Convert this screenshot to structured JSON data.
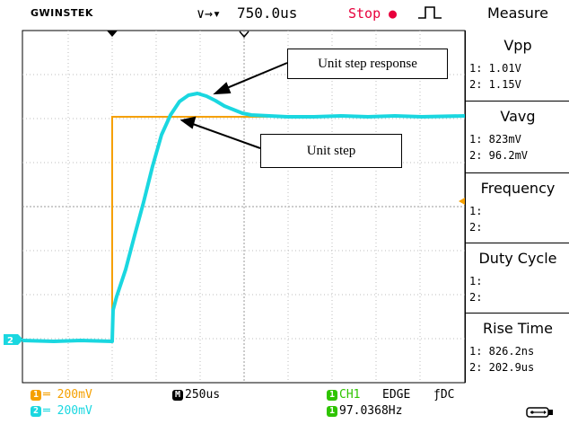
{
  "top_bar": {
    "brand": "GWINSTEK",
    "horizontal_icon": "∨→▾",
    "horizontal_position": "750.0us",
    "run_state": "Stop",
    "run_state_dot": "●",
    "trigger_icon": "rising-edge-icon"
  },
  "measure": {
    "title": "Measure",
    "items": [
      {
        "name": "Vpp",
        "ch1": "1: 1.01V",
        "ch2": "2: 1.15V"
      },
      {
        "name": "Vavg",
        "ch1": "1: 823mV",
        "ch2": "2: 96.2mV"
      },
      {
        "name": "Frequency",
        "ch1": "1:",
        "ch2": "2:"
      },
      {
        "name": "Duty Cycle",
        "ch1": "1:",
        "ch2": "2:"
      },
      {
        "name": "Rise Time",
        "ch1": "1: 826.2ns",
        "ch2": "2: 202.9us"
      }
    ]
  },
  "bottom_bar": {
    "ch1_badge": "1",
    "ch1_scale": "═ 200mV",
    "ch2_badge": "2",
    "ch2_scale": "═ 200mV",
    "timebase_badge": "M",
    "timebase": "250us",
    "trigger_badge": "1",
    "trigger_source": "CH1",
    "trigger_type": "EDGE",
    "trigger_slope": "ƒ",
    "trigger_coupling": "DC",
    "freq_badge": "1",
    "trigger_freq": "97.0368Hz",
    "usb_icon": "usb-icon"
  },
  "markers": {
    "ch2_ground": "2"
  },
  "annotations": {
    "response_label": "Unit step response",
    "step_label": "Unit step"
  },
  "colors": {
    "ch1": "#f5a000",
    "ch2": "#1ad7e0",
    "stop": "#e8003c",
    "grid": "#bdbdbd"
  }
}
